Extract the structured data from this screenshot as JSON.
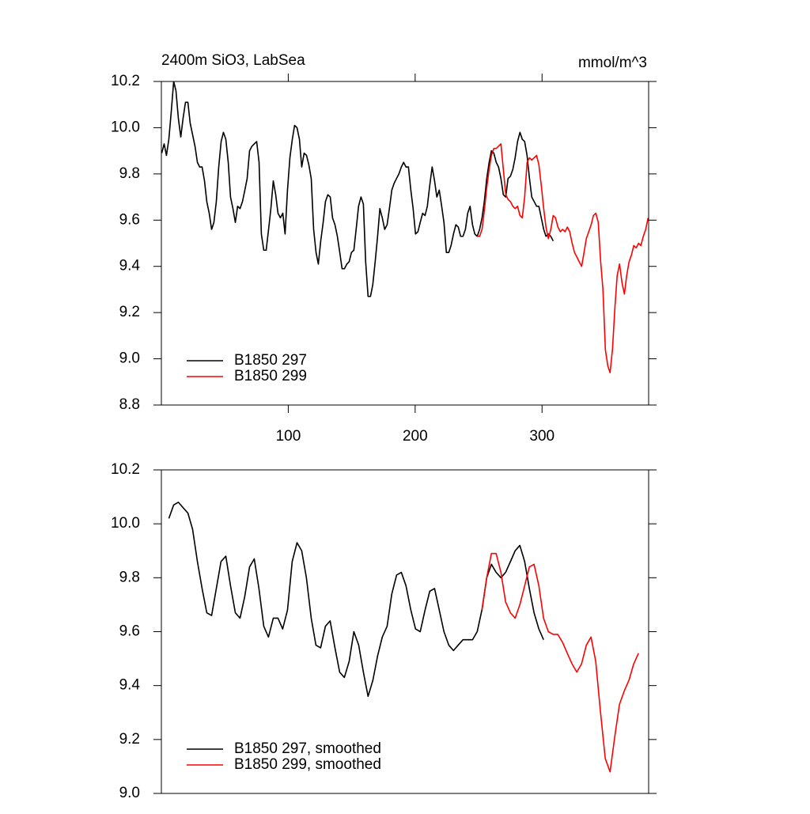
{
  "chart_data": [
    {
      "type": "line",
      "title": "2400m SiO3, LabSea",
      "unit_label": "mmol/m^3",
      "xlim": [
        0,
        384
      ],
      "ylim": [
        8.8,
        10.2
      ],
      "xticks": [
        100,
        200,
        300
      ],
      "yticks": [
        8.8,
        {
          "value": 9,
          "label": "9.0"
        },
        9.2,
        9.4,
        9.6,
        9.8,
        {
          "value": 10,
          "label": "10.0"
        },
        10.2
      ],
      "legend": "lower left",
      "series": [
        {
          "name": "B1850 297",
          "color": "#000000",
          "x": [
            0.3,
            2.2,
            4.0,
            5.9,
            7.8,
            9.7,
            11.5,
            13.4,
            15.3,
            17.1,
            19.0,
            20.9,
            22.7,
            24.6,
            26.5,
            28.4,
            30.2,
            32.1,
            34.0,
            35.8,
            37.7,
            39.6,
            41.4,
            43.3,
            45.2,
            47.1,
            48.9,
            50.8,
            52.7,
            54.5,
            56.4,
            58.3,
            60.1,
            62.0,
            63.9,
            65.8,
            67.6,
            69.5,
            71.4,
            73.2,
            75.1,
            77.0,
            78.8,
            80.7,
            82.6,
            84.5,
            86.3,
            88.2,
            90.1,
            91.9,
            93.8,
            95.7,
            97.5,
            99.4,
            101.3,
            103.2,
            105.0,
            106.9,
            108.8,
            110.6,
            112.5,
            114.4,
            116.2,
            118.1,
            120.0,
            121.9,
            123.7,
            125.6,
            127.5,
            129.3,
            131.2,
            133.1,
            134.9,
            136.8,
            138.7,
            140.6,
            142.4,
            144.3,
            146.2,
            148.0,
            149.8,
            151.7,
            153.5,
            155.4,
            157.3,
            159.2,
            161.0,
            162.9,
            164.8,
            166.6,
            168.5,
            170.4,
            172.2,
            174.1,
            176.0,
            177.9,
            179.7,
            181.6,
            183.5,
            185.3,
            187.2,
            189.1,
            190.9,
            192.8,
            194.7,
            196.6,
            198.4,
            200.3,
            202.2,
            204.0,
            205.9,
            207.8,
            209.6,
            211.5,
            213.4,
            215.3,
            217.1,
            219.0,
            220.9,
            222.7,
            224.6,
            226.5,
            228.3,
            230.2,
            232.1,
            234.0,
            235.8,
            237.7,
            239.6,
            241.4,
            243.3,
            245.2,
            247.0,
            248.9,
            250.8,
            252.7,
            254.5,
            256.4,
            258.3,
            260.1,
            262.0,
            263.9,
            265.7,
            267.6,
            269.5,
            271.4,
            273.2,
            275.1,
            277.0,
            278.8,
            280.7,
            282.6,
            284.4,
            286.3,
            288.2,
            290.1,
            291.9,
            293.8,
            295.7,
            297.5,
            299.4,
            301.3,
            303.1,
            305.0,
            306.9,
            308.8
          ],
          "values": [
            9.89,
            9.93,
            9.88,
            9.95,
            10.07,
            10.2,
            10.16,
            10.04,
            9.96,
            10.04,
            10.11,
            10.11,
            10.02,
            9.97,
            9.92,
            9.85,
            9.83,
            9.83,
            9.77,
            9.68,
            9.63,
            9.56,
            9.59,
            9.68,
            9.83,
            9.94,
            9.98,
            9.95,
            9.85,
            9.7,
            9.65,
            9.59,
            9.66,
            9.65,
            9.68,
            9.73,
            9.78,
            9.9,
            9.92,
            9.93,
            9.94,
            9.85,
            9.54,
            9.47,
            9.47,
            9.56,
            9.65,
            9.77,
            9.71,
            9.63,
            9.61,
            9.63,
            9.54,
            9.73,
            9.87,
            9.95,
            10.01,
            10.0,
            9.95,
            9.83,
            9.89,
            9.88,
            9.84,
            9.78,
            9.56,
            9.46,
            9.41,
            9.51,
            9.59,
            9.68,
            9.71,
            9.7,
            9.61,
            9.58,
            9.53,
            9.46,
            9.39,
            9.39,
            9.41,
            9.42,
            9.46,
            9.47,
            9.56,
            9.66,
            9.7,
            9.67,
            9.42,
            9.27,
            9.27,
            9.32,
            9.42,
            9.53,
            9.65,
            9.61,
            9.56,
            9.58,
            9.65,
            9.73,
            9.76,
            9.78,
            9.8,
            9.83,
            9.85,
            9.83,
            9.83,
            9.73,
            9.65,
            9.54,
            9.55,
            9.59,
            9.63,
            9.62,
            9.66,
            9.75,
            9.83,
            9.77,
            9.7,
            9.73,
            9.66,
            9.59,
            9.46,
            9.46,
            9.49,
            9.54,
            9.58,
            9.57,
            9.53,
            9.53,
            9.56,
            9.63,
            9.66,
            9.58,
            9.54,
            9.53,
            9.56,
            9.61,
            9.68,
            9.78,
            9.85,
            9.9,
            9.89,
            9.85,
            9.83,
            9.78,
            9.71,
            9.7,
            9.78,
            9.79,
            9.82,
            9.87,
            9.94,
            9.98,
            9.95,
            9.94,
            9.88,
            9.78,
            9.7,
            9.68,
            9.66,
            9.66,
            9.61,
            9.56,
            9.53,
            9.54,
            9.53,
            9.51
          ]
        },
        {
          "name": "B1850 299",
          "color": "#ff0000",
          "x": [
            248.9,
            250.8,
            252.7,
            254.5,
            256.4,
            258.3,
            260.1,
            262.0,
            263.9,
            265.7,
            267.6,
            269.5,
            271.4,
            273.2,
            275.1,
            277.0,
            278.8,
            280.7,
            282.6,
            284.4,
            286.3,
            288.2,
            290.1,
            291.9,
            293.8,
            295.7,
            297.5,
            299.4,
            301.3,
            303.1,
            305.0,
            306.9,
            308.8,
            310.6,
            312.5,
            314.4,
            316.2,
            318.1,
            320.0,
            321.8,
            323.7,
            325.6,
            327.5,
            329.3,
            331.2,
            333.1,
            334.9,
            336.8,
            338.7,
            340.5,
            342.4,
            344.3,
            346.2,
            348.0,
            349.9,
            351.8,
            353.6,
            355.5,
            357.4,
            359.2,
            361.1,
            363.0,
            364.9,
            366.7,
            368.6,
            370.5,
            372.3,
            374.2,
            376.1,
            377.9,
            379.8,
            381.7,
            383.6
          ],
          "values": [
            9.53,
            9.53,
            9.56,
            9.64,
            9.74,
            9.82,
            9.88,
            9.91,
            9.91,
            9.92,
            9.93,
            9.82,
            9.71,
            9.69,
            9.68,
            9.66,
            9.65,
            9.66,
            9.62,
            9.61,
            9.7,
            9.85,
            9.87,
            9.86,
            9.87,
            9.88,
            9.84,
            9.75,
            9.65,
            9.57,
            9.52,
            9.56,
            9.62,
            9.61,
            9.57,
            9.55,
            9.56,
            9.55,
            9.57,
            9.55,
            9.5,
            9.46,
            9.44,
            9.42,
            9.4,
            9.46,
            9.52,
            9.55,
            9.58,
            9.62,
            9.63,
            9.59,
            9.42,
            9.3,
            9.04,
            8.97,
            8.94,
            9.04,
            9.22,
            9.36,
            9.41,
            9.33,
            9.28,
            9.36,
            9.42,
            9.45,
            9.49,
            9.48,
            9.5,
            9.49,
            9.53,
            9.56,
            9.61
          ]
        }
      ]
    },
    {
      "type": "line",
      "xlim": [
        0,
        384
      ],
      "ylim": [
        9,
        10.2
      ],
      "yticks": [
        {
          "value": 9,
          "label": "9.0"
        },
        9.2,
        9.4,
        9.6,
        9.8,
        {
          "value": 10,
          "label": "10.0"
        },
        10.2
      ],
      "legend": "lower left",
      "series": [
        {
          "name": "B1850 297, smoothed",
          "color": "#000000",
          "x": [
            5.9,
            9.7,
            13.4,
            17.1,
            20.9,
            24.6,
            28.4,
            32.1,
            35.8,
            39.6,
            43.3,
            47.0,
            50.8,
            54.5,
            58.3,
            62.0,
            65.7,
            69.5,
            73.2,
            76.9,
            80.7,
            84.4,
            88.2,
            91.9,
            95.6,
            99.4,
            103.1,
            106.9,
            110.6,
            114.3,
            118.1,
            121.8,
            125.5,
            129.3,
            133.0,
            136.8,
            140.5,
            144.2,
            148.0,
            151.7,
            155.5,
            159.2,
            162.9,
            166.7,
            170.4,
            174.1,
            177.9,
            181.6,
            185.4,
            189.1,
            192.8,
            196.6,
            200.3,
            204.0,
            207.8,
            211.5,
            215.3,
            219.0,
            222.7,
            226.5,
            230.2,
            233.9,
            237.7,
            241.4,
            245.2,
            248.9,
            252.6,
            256.4,
            260.1,
            263.8,
            267.6,
            271.3,
            275.1,
            278.8,
            282.5,
            286.3,
            290.0,
            293.7,
            297.5,
            301.2
          ],
          "values": [
            10.02,
            10.07,
            10.08,
            10.06,
            10.04,
            9.98,
            9.86,
            9.76,
            9.67,
            9.66,
            9.76,
            9.86,
            9.88,
            9.77,
            9.67,
            9.65,
            9.73,
            9.84,
            9.87,
            9.76,
            9.62,
            9.58,
            9.65,
            9.65,
            9.61,
            9.68,
            9.86,
            9.93,
            9.9,
            9.8,
            9.65,
            9.55,
            9.54,
            9.62,
            9.64,
            9.54,
            9.45,
            9.43,
            9.49,
            9.6,
            9.55,
            9.45,
            9.36,
            9.42,
            9.51,
            9.58,
            9.62,
            9.74,
            9.81,
            9.82,
            9.77,
            9.68,
            9.61,
            9.6,
            9.68,
            9.75,
            9.76,
            9.68,
            9.6,
            9.55,
            9.53,
            9.55,
            9.57,
            9.57,
            9.57,
            9.6,
            9.68,
            9.8,
            9.85,
            9.82,
            9.8,
            9.82,
            9.86,
            9.9,
            9.92,
            9.86,
            9.76,
            9.67,
            9.61,
            9.57
          ]
        },
        {
          "name": "B1850 299, smoothed",
          "color": "#ff0000",
          "x": [
            252.7,
            256.4,
            260.1,
            263.8,
            267.6,
            271.3,
            275.1,
            278.8,
            282.5,
            286.3,
            290.0,
            293.7,
            297.5,
            301.2,
            305.0,
            308.7,
            312.4,
            316.2,
            319.9,
            323.7,
            327.4,
            331.1,
            334.9,
            338.6,
            342.3,
            346.1,
            349.8,
            353.6,
            357.3,
            361.0,
            364.8,
            368.5,
            372.2,
            376.0
          ],
          "values": [
            9.68,
            9.8,
            9.89,
            9.89,
            9.82,
            9.71,
            9.67,
            9.65,
            9.7,
            9.77,
            9.84,
            9.85,
            9.77,
            9.65,
            9.6,
            9.59,
            9.59,
            9.56,
            9.52,
            9.48,
            9.45,
            9.48,
            9.55,
            9.58,
            9.49,
            9.3,
            9.13,
            9.08,
            9.21,
            9.33,
            9.38,
            9.42,
            9.48,
            9.52
          ]
        }
      ]
    }
  ]
}
